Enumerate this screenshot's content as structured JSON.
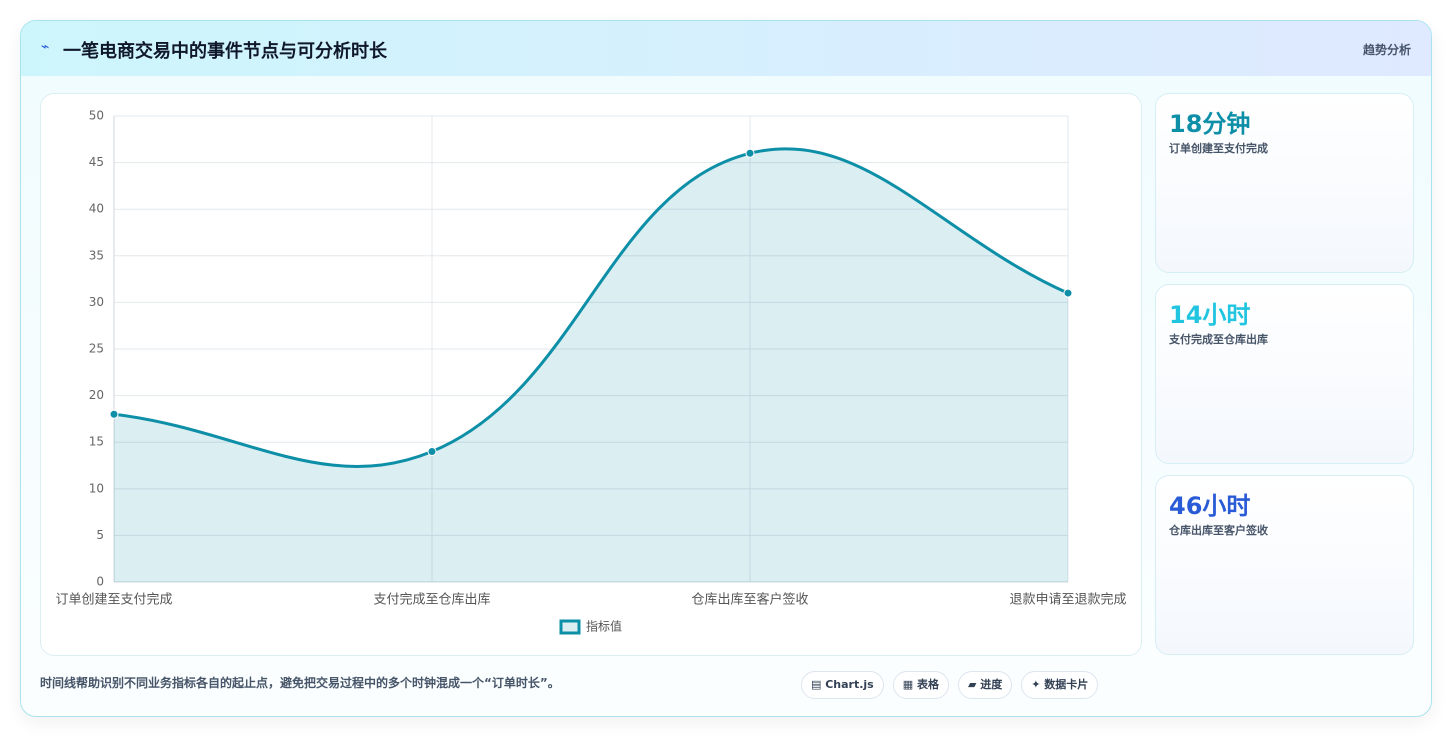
{
  "header": {
    "icon": "⌁",
    "title": "一笔电商交易中的事件节点与可分析时长",
    "action": "趋势分析"
  },
  "chart_data": {
    "type": "line",
    "fill": true,
    "categories": [
      "订单创建至支付完成",
      "支付完成至仓库出库",
      "仓库出库至客户签收",
      "退款申请至退款完成"
    ],
    "series": [
      {
        "name": "指标值",
        "color": "#0e8fa8",
        "values": [
          18,
          14,
          46,
          31
        ]
      }
    ],
    "ylim": [
      0,
      50
    ],
    "yticks": [
      0,
      5,
      10,
      15,
      20,
      25,
      30,
      35,
      40,
      45,
      50
    ],
    "grid": true,
    "legend": "bottom"
  },
  "cards": [
    {
      "value": "18分钟",
      "label": "订单创建至支付完成",
      "color": "#0e8fa8"
    },
    {
      "value": "14小时",
      "label": "支付完成至仓库出库",
      "color": "#22c5e0"
    },
    {
      "value": "46小时",
      "label": "仓库出库至客户签收",
      "color": "#2a5bd7"
    }
  ],
  "footer": {
    "note": "时间线帮助识别不同业务指标各自的起止点，避免把交易过程中的多个时钟混成一个“订单时长”。",
    "buttons": [
      "▤ Chart.js",
      "▦ 表格",
      "▰ 进度",
      "✦ 数据卡片"
    ]
  }
}
